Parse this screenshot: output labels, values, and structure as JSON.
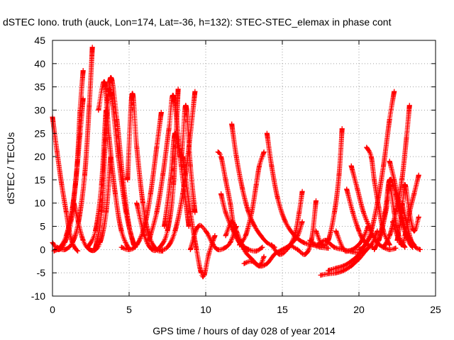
{
  "chart_data": {
    "type": "scatter",
    "title": "dSTEC Iono. truth (auck, Lon=174, Lat=-36, h=132): STEC-STEC_elemax in phase cont",
    "xlabel": "GPS time / hours of day 028 of year 2014",
    "ylabel": "dSTEC  / TECUs",
    "xlim": [
      0,
      25
    ],
    "ylim": [
      -10,
      45
    ],
    "xticks": [
      "0",
      "5",
      "10",
      "15",
      "20",
      "25"
    ],
    "yticks": [
      "-10",
      "-5",
      "0",
      "5",
      "10",
      "15",
      "20",
      "25",
      "30",
      "35",
      "40",
      "45"
    ],
    "grid": true,
    "marker": "plus",
    "color": "#ff0000",
    "series": [
      {
        "x": [
          0.0,
          0.3,
          0.6,
          0.9,
          1.1,
          1.3,
          1.5,
          1.65
        ],
        "y": [
          28.5,
          21,
          14,
          8,
          4,
          1.5,
          0.2,
          -0.3
        ]
      },
      {
        "x": [
          0.0,
          0.4,
          0.8,
          1.2,
          1.5,
          1.8,
          2.0
        ],
        "y": [
          1.5,
          0,
          1.5,
          6,
          14,
          25,
          32.5
        ]
      },
      {
        "x": [
          0.1,
          0.5,
          0.9,
          1.3,
          1.6,
          1.8,
          2.0
        ],
        "y": [
          -0.3,
          0.5,
          3,
          9,
          18,
          30,
          38.5
        ]
      },
      {
        "x": [
          0.3,
          0.8,
          1.3,
          1.7,
          2.1,
          2.4,
          2.6
        ],
        "y": [
          0.5,
          0,
          1.5,
          6,
          16,
          31,
          43.5
        ]
      },
      {
        "x": [
          1.4,
          2.0,
          2.6,
          3.1,
          3.5,
          3.8
        ],
        "y": [
          10,
          2,
          -0.2,
          1.5,
          8,
          20
        ]
      },
      {
        "x": [
          2.3,
          2.8,
          3.2,
          3.5,
          3.8,
          4.3,
          4.8,
          5.3
        ],
        "y": [
          0.5,
          4,
          14,
          30,
          34,
          20,
          8,
          1
        ]
      },
      {
        "x": [
          2.8,
          3.2,
          3.5,
          3.8,
          4.2,
          4.6,
          5.0,
          5.4
        ],
        "y": [
          0.2,
          8,
          26,
          37,
          28,
          15,
          5,
          0.5
        ]
      },
      {
        "x": [
          3.0,
          3.4,
          3.7,
          4.1,
          4.5,
          5.0
        ],
        "y": [
          30,
          36,
          24,
          12,
          4,
          0
        ]
      },
      {
        "x": [
          4.5,
          5.0,
          5.5,
          6.0,
          6.4,
          6.8,
          7.1
        ],
        "y": [
          0.5,
          0,
          1,
          5,
          12,
          22,
          29.5
        ]
      },
      {
        "x": [
          4.9,
          5.2,
          5.5,
          5.9,
          6.3,
          6.8,
          7.2
        ],
        "y": [
          15,
          33.5,
          22,
          10,
          3,
          0,
          -0.3
        ]
      },
      {
        "x": [
          5.5,
          6.0,
          6.5,
          7.0,
          7.5,
          7.9,
          8.2
        ],
        "y": [
          10,
          3,
          0,
          0.5,
          4,
          14,
          34.5
        ]
      },
      {
        "x": [
          6.3,
          6.8,
          7.2,
          7.6,
          7.9,
          8.4,
          8.9
        ],
        "y": [
          2,
          8,
          16,
          26,
          33,
          18,
          5
        ]
      },
      {
        "x": [
          7.0,
          7.5,
          8.0,
          8.5,
          8.9,
          9.3
        ],
        "y": [
          0,
          0.5,
          4,
          12,
          22,
          34
        ]
      },
      {
        "x": [
          7.3,
          7.7,
          8.0,
          8.4,
          8.7,
          9.0,
          9.3
        ],
        "y": [
          5,
          15,
          25,
          20,
          31,
          18,
          8
        ]
      },
      {
        "x": [
          8.5,
          9.0,
          9.4,
          9.7,
          9.9,
          10.2,
          10.6
        ],
        "y": [
          20,
          8,
          0,
          -5,
          -5.5,
          -1,
          3
        ]
      },
      {
        "x": [
          9.0,
          9.5,
          10.0,
          10.5,
          10.8,
          11.2,
          11.6,
          12.0
        ],
        "y": [
          0,
          5,
          4,
          1,
          0,
          0.3,
          1.5,
          5
        ]
      },
      {
        "x": [
          10.8,
          11.0,
          11.3,
          11.6,
          11.9,
          12.4,
          12.8
        ],
        "y": [
          21,
          20,
          15,
          10,
          4,
          1,
          0
        ]
      },
      {
        "x": [
          11.0,
          11.3,
          11.8,
          12.3,
          12.8,
          13.3,
          13.7
        ],
        "y": [
          12,
          8,
          4,
          1,
          0,
          -0.3,
          0.5
        ]
      },
      {
        "x": [
          11.3,
          11.7,
          12.0,
          12.5,
          13.0,
          13.5,
          14.0,
          14.5,
          15.0,
          15.5,
          16.0,
          16.3
        ],
        "y": [
          3,
          6,
          4,
          0,
          -2,
          -3.5,
          -3,
          -1,
          0,
          1,
          3,
          6
        ]
      },
      {
        "x": [
          11.7,
          12.0,
          12.4,
          12.8,
          13.2,
          13.6,
          14.0,
          14.5
        ],
        "y": [
          27,
          20,
          13,
          8,
          5,
          3,
          1.5,
          0.5
        ]
      },
      {
        "x": [
          12.2,
          12.6,
          13.0,
          13.3,
          13.5,
          13.8
        ],
        "y": [
          1,
          3,
          8,
          14,
          18,
          21
        ]
      },
      {
        "x": [
          12.5,
          13.0,
          13.5,
          13.8
        ],
        "y": [
          -3,
          -2.5,
          -3.5,
          -1.5
        ]
      },
      {
        "x": [
          14.0,
          14.3,
          14.7,
          15.2,
          15.8,
          16.4,
          17.0,
          17.5,
          18.0
        ],
        "y": [
          25,
          18,
          11,
          6,
          3,
          1.5,
          1,
          0.5,
          0.3
        ]
      },
      {
        "x": [
          14.3,
          14.8,
          15.3,
          15.8,
          16.1,
          16.3
        ],
        "y": [
          1,
          -1,
          0,
          3,
          8,
          12.5
        ]
      },
      {
        "x": [
          15.5,
          16.0,
          16.5,
          16.9,
          17.2
        ],
        "y": [
          1,
          0,
          -1,
          2,
          10.5
        ]
      },
      {
        "x": [
          16.8,
          17.3,
          17.8,
          18.4,
          19.0,
          19.6,
          20.2,
          20.8,
          21.2
        ],
        "y": [
          2,
          1,
          2,
          0.5,
          0,
          -0.5,
          -0.5,
          1,
          4
        ]
      },
      {
        "x": [
          17.2,
          17.6,
          18.0,
          18.4,
          18.7,
          18.9
        ],
        "y": [
          4,
          1,
          2,
          8,
          16,
          26
        ]
      },
      {
        "x": [
          17.5,
          18.0,
          18.5,
          19.0,
          19.5,
          20.0,
          20.5
        ],
        "y": [
          -5.5,
          -5.2,
          -5,
          -4.5,
          -3.5,
          -2,
          0
        ]
      },
      {
        "x": [
          18.0,
          18.5,
          19.0,
          19.5,
          20.0,
          20.4,
          20.8
        ],
        "y": [
          -4.5,
          -4,
          -3.5,
          -2.5,
          -1,
          1,
          3
        ]
      },
      {
        "x": [
          18.5,
          19.0,
          19.4,
          19.8,
          20.2,
          20.6
        ],
        "y": [
          4,
          0,
          -0.2,
          0.5,
          2,
          5
        ]
      },
      {
        "x": [
          19.2,
          19.6,
          20.0,
          20.3,
          20.6,
          20.9
        ],
        "y": [
          13,
          8,
          4,
          2,
          1,
          0.5
        ]
      },
      {
        "x": [
          19.5,
          19.9,
          20.3,
          20.8,
          21.2,
          21.6,
          22.0,
          22.4
        ],
        "y": [
          18,
          13,
          8,
          4,
          1.5,
          0.5,
          0,
          0.3
        ]
      },
      {
        "x": [
          20.0,
          20.4,
          20.8,
          21.2,
          21.6,
          22.0,
          22.3
        ],
        "y": [
          0,
          1,
          4,
          10,
          18,
          28,
          34
        ]
      },
      {
        "x": [
          20.5,
          20.8,
          21.0,
          21.3,
          21.6,
          22.0
        ],
        "y": [
          22,
          20,
          15,
          9,
          4,
          1
        ]
      },
      {
        "x": [
          21.0,
          21.4,
          21.8,
          22.0,
          22.3,
          22.6,
          23.0
        ],
        "y": [
          0,
          3,
          9,
          14,
          8,
          3,
          0.5
        ]
      },
      {
        "x": [
          21.3,
          21.7,
          22.0,
          22.4,
          22.8,
          23.2,
          23.5
        ],
        "y": [
          2,
          8,
          15,
          12,
          6,
          2,
          0.5
        ]
      },
      {
        "x": [
          21.6,
          22.0,
          22.4,
          22.8,
          23.1,
          23.3
        ],
        "y": [
          0.5,
          3,
          8,
          15,
          24,
          31
        ]
      },
      {
        "x": [
          22.0,
          22.3,
          22.6,
          22.9,
          23.2,
          23.6
        ],
        "y": [
          19,
          15,
          10,
          6,
          3,
          1
        ]
      },
      {
        "x": [
          22.2,
          22.5,
          22.8,
          23.0,
          23.3,
          23.6,
          23.9
        ],
        "y": [
          6,
          3,
          1,
          3,
          8,
          12,
          16
        ]
      },
      {
        "x": [
          22.5,
          22.8,
          23.0,
          23.3,
          23.6,
          23.9
        ],
        "y": [
          2,
          8,
          14,
          8,
          4,
          7
        ]
      },
      {
        "x": [
          22.8,
          23.1,
          23.4,
          23.7,
          24.0
        ],
        "y": [
          10,
          6,
          2,
          0.5,
          0
        ]
      }
    ]
  }
}
